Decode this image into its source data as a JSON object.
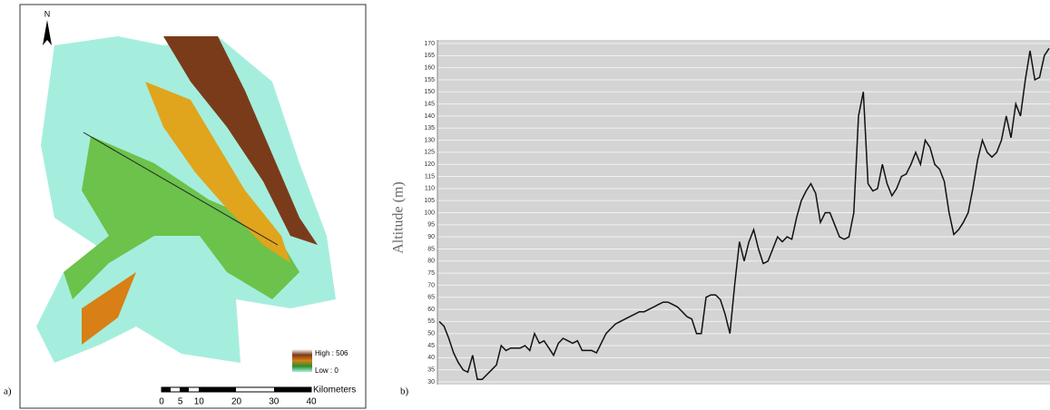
{
  "map": {
    "panel_label": "a)",
    "north": "N",
    "legend_high": "High : 506",
    "legend_low": "Low : 0",
    "scale_labels": [
      "0",
      "5",
      "10",
      "20",
      "30",
      "40"
    ],
    "scale_unit": "Kilometers"
  },
  "chart_data": {
    "type": "line",
    "panel_label": "b)",
    "y_label": "Altitude (m)",
    "values": [
      55,
      53,
      48,
      42,
      38,
      35,
      34,
      41,
      31,
      31,
      33,
      35,
      37,
      45,
      43,
      44,
      44,
      44,
      45,
      43,
      50,
      46,
      47,
      44,
      41,
      46,
      48,
      47,
      46,
      47,
      43,
      43,
      43,
      42,
      46,
      50,
      52,
      54,
      55,
      56,
      57,
      58,
      59,
      59,
      60,
      61,
      62,
      63,
      63,
      62,
      61,
      59,
      57,
      56,
      50,
      50,
      65,
      66,
      66,
      64,
      58,
      50,
      70,
      88,
      80,
      88,
      93,
      85,
      79,
      80,
      85,
      90,
      88,
      90,
      89,
      98,
      105,
      109,
      112,
      108,
      96,
      100,
      100,
      95,
      90,
      89,
      90,
      100,
      140,
      150,
      112,
      109,
      110,
      120,
      112,
      107,
      110,
      115,
      116,
      120,
      125,
      120,
      130,
      127,
      120,
      118,
      113,
      100,
      91,
      93,
      96,
      100,
      110,
      122,
      130,
      125,
      123,
      125,
      130,
      140,
      131,
      145,
      140,
      155,
      167,
      155,
      156,
      165,
      168
    ],
    "color": "#111111",
    "ylim": [
      30,
      170
    ],
    "yticks": [
      30,
      35,
      40,
      45,
      50,
      55,
      60,
      65,
      70,
      75,
      80,
      85,
      90,
      95,
      100,
      105,
      110,
      115,
      120,
      125,
      130,
      135,
      140,
      145,
      150,
      155,
      160,
      165,
      170
    ],
    "grid": true
  }
}
